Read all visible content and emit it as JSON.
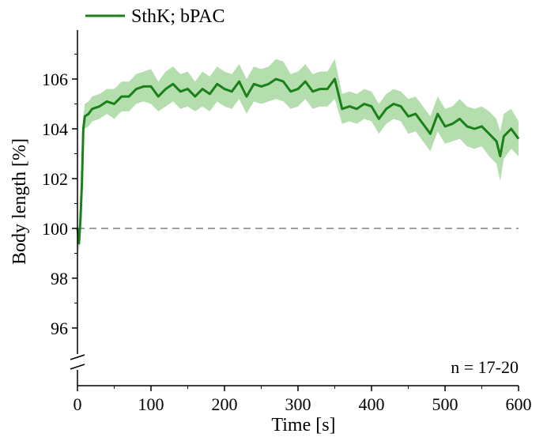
{
  "chart_data": {
    "type": "line",
    "xlabel": "Time [s]",
    "ylabel": "Body length [%]",
    "xlim": [
      0,
      600
    ],
    "ylim": [
      95,
      107.5
    ],
    "y_axis_break": true,
    "xticks": [
      "0",
      "100",
      "200",
      "300",
      "400",
      "500",
      "600"
    ],
    "yticks": [
      "96",
      "98",
      "100",
      "102",
      "104",
      "106"
    ],
    "legend_position": "top-left",
    "annotation": "n = 17-20",
    "reference_line": {
      "y": 100,
      "style": "dashed",
      "color": "#808080"
    },
    "series": [
      {
        "name": "SthK; bPAC",
        "color": "#1a801a",
        "band_color": "#a8d8a0",
        "x": [
          0,
          2,
          4,
          6,
          8,
          10,
          15,
          20,
          30,
          40,
          50,
          60,
          70,
          80,
          90,
          100,
          110,
          120,
          130,
          140,
          150,
          160,
          170,
          180,
          190,
          200,
          210,
          220,
          230,
          240,
          250,
          260,
          270,
          280,
          290,
          300,
          310,
          320,
          330,
          340,
          350,
          360,
          370,
          380,
          390,
          400,
          410,
          420,
          430,
          440,
          450,
          460,
          470,
          480,
          490,
          500,
          510,
          520,
          530,
          540,
          550,
          560,
          570,
          575,
          580,
          590,
          600
        ],
        "y": [
          100.0,
          99.4,
          100.3,
          101.8,
          104.0,
          104.5,
          104.6,
          104.8,
          104.9,
          105.1,
          105.0,
          105.3,
          105.3,
          105.6,
          105.7,
          105.7,
          105.3,
          105.6,
          105.8,
          105.5,
          105.6,
          105.3,
          105.6,
          105.4,
          105.8,
          105.6,
          105.5,
          105.9,
          105.3,
          105.8,
          105.7,
          105.8,
          106.0,
          105.9,
          105.5,
          105.6,
          105.9,
          105.5,
          105.6,
          105.6,
          106.0,
          104.8,
          104.9,
          104.8,
          105.0,
          104.9,
          104.4,
          104.8,
          105.0,
          104.9,
          104.5,
          104.6,
          104.2,
          103.8,
          104.6,
          104.1,
          104.2,
          104.4,
          104.1,
          104.0,
          104.1,
          103.8,
          103.5,
          102.9,
          103.7,
          104.0,
          103.6
        ],
        "err": [
          0.3,
          0.4,
          0.5,
          0.6,
          0.5,
          0.5,
          0.5,
          0.5,
          0.5,
          0.5,
          0.6,
          0.6,
          0.6,
          0.6,
          0.6,
          0.7,
          0.6,
          0.7,
          0.7,
          0.7,
          0.7,
          0.6,
          0.7,
          0.7,
          0.7,
          0.7,
          0.7,
          0.7,
          0.7,
          0.7,
          0.7,
          0.7,
          0.8,
          0.8,
          0.7,
          0.7,
          0.7,
          0.7,
          0.7,
          0.7,
          0.8,
          0.6,
          0.6,
          0.6,
          0.6,
          0.6,
          0.6,
          0.6,
          0.6,
          0.6,
          0.7,
          0.7,
          0.7,
          0.7,
          0.7,
          0.7,
          0.7,
          0.8,
          0.8,
          0.8,
          0.8,
          0.9,
          0.9,
          1.0,
          0.9,
          0.8,
          0.7
        ]
      }
    ]
  }
}
